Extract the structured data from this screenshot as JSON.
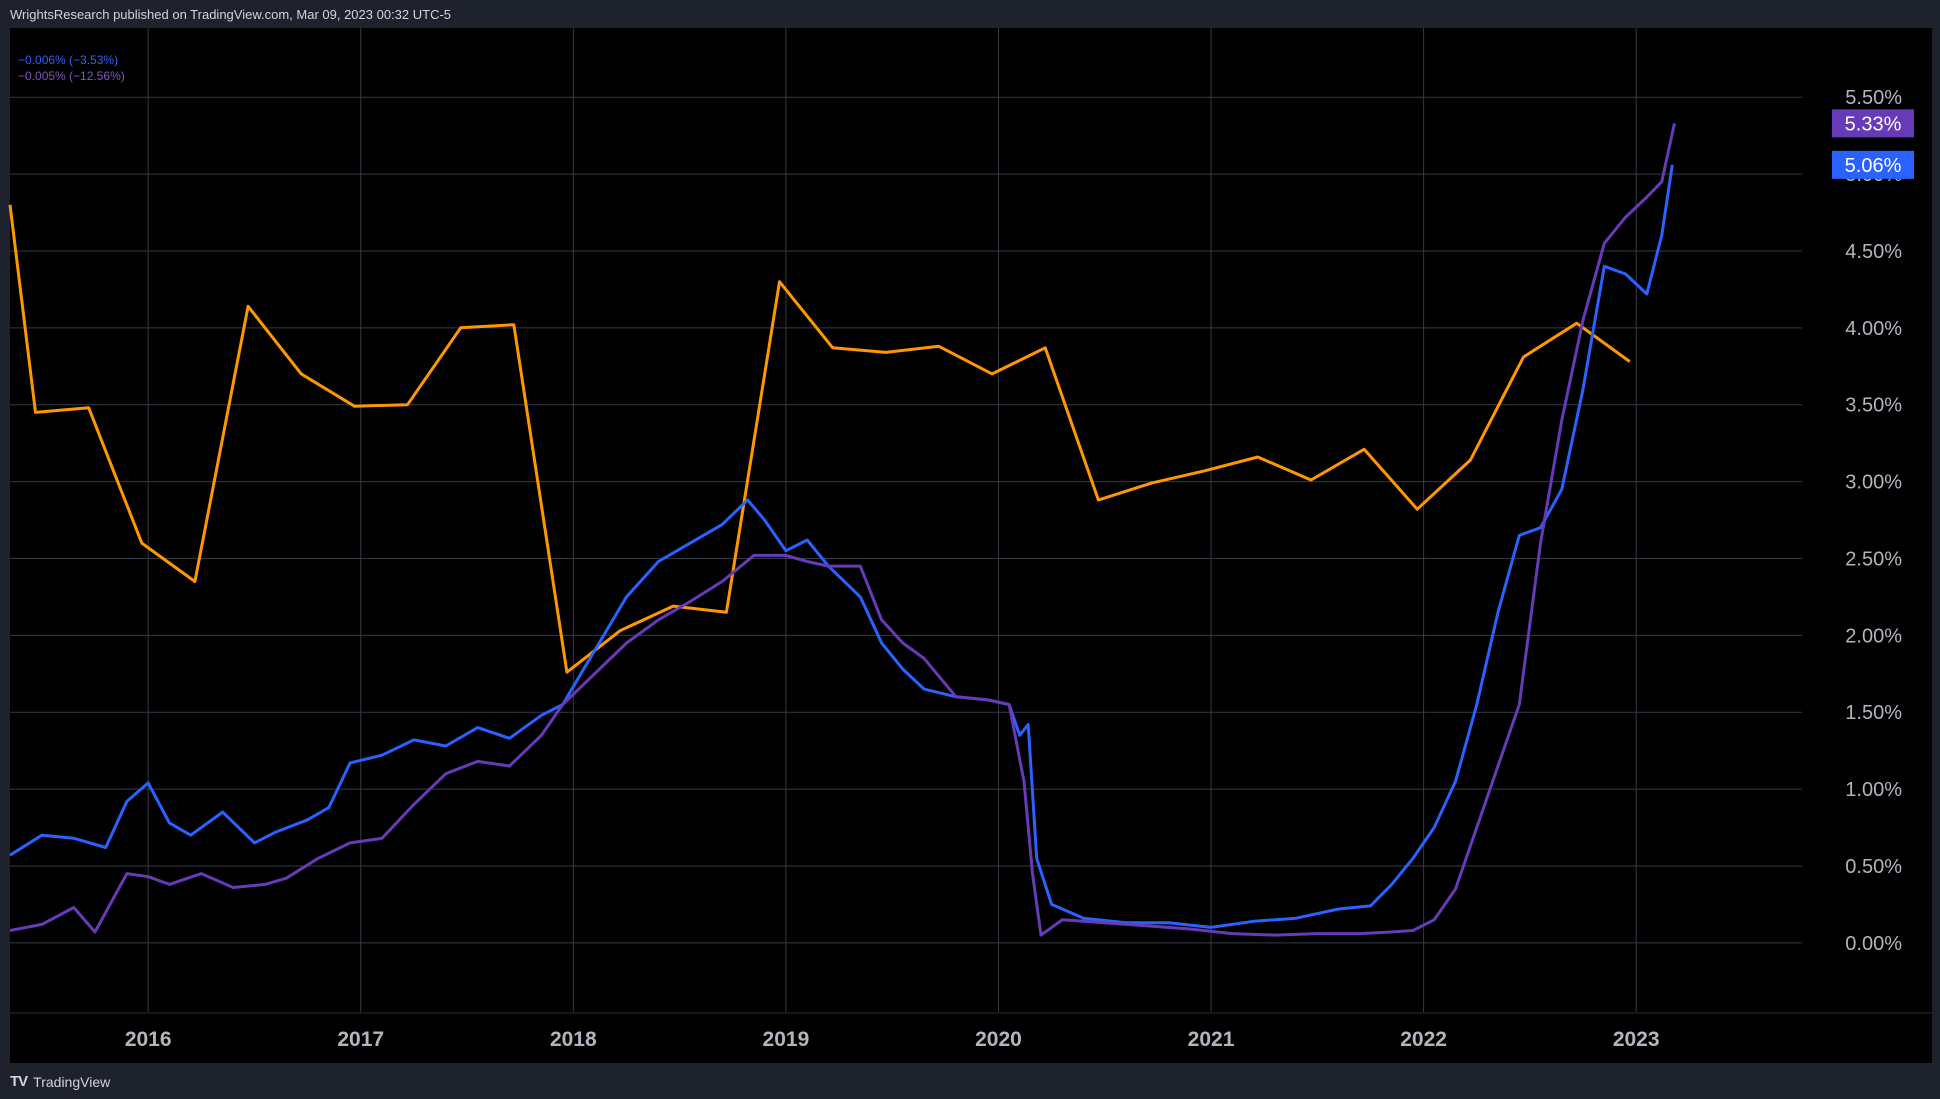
{
  "header": {
    "text": "WrightsResearch published on TradingView.com, Mar 09, 2023 00:32 UTC-5"
  },
  "footer": {
    "brand": "TradingView",
    "logo_icon": "tradingview-logo-icon"
  },
  "legend": [
    {
      "text": "−0.006% (−3.53%)",
      "color": "#2962ff"
    },
    {
      "text": "−0.005% (−12.56%)",
      "color": "#673ab7"
    }
  ],
  "price_labels": [
    {
      "text": "5.33%",
      "value": 5.33,
      "color": "#673ab7"
    },
    {
      "text": "5.06%",
      "value": 5.06,
      "color": "#2962ff"
    }
  ],
  "chart_data": {
    "type": "line",
    "ylim": [
      -0.45,
      5.95
    ],
    "xlim": [
      2015.35,
      2023.78
    ],
    "y_ticks": [
      0,
      0.5,
      1,
      1.5,
      2,
      2.5,
      3,
      3.5,
      4,
      4.5,
      5,
      5.5
    ],
    "y_tick_labels": [
      "0.00%",
      "0.50%",
      "1.00%",
      "1.50%",
      "2.00%",
      "2.50%",
      "3.00%",
      "3.50%",
      "4.00%",
      "4.50%",
      "5.00%",
      "5.50%"
    ],
    "x_ticks": [
      2016,
      2017,
      2018,
      2019,
      2020,
      2021,
      2022,
      2023
    ],
    "x_tick_labels": [
      "2016",
      "2017",
      "2018",
      "2019",
      "2020",
      "2021",
      "2022",
      "2023"
    ],
    "grid": true,
    "series": [
      {
        "color": "#ff9800",
        "x": [
          2015.35,
          2015.47,
          2015.72,
          2015.97,
          2016.22,
          2016.47,
          2016.72,
          2016.97,
          2017.22,
          2017.47,
          2017.72,
          2017.97,
          2018.22,
          2018.47,
          2018.72,
          2018.97,
          2019.22,
          2019.47,
          2019.72,
          2019.97,
          2020.22,
          2020.47,
          2020.72,
          2020.97,
          2021.22,
          2021.47,
          2021.72,
          2021.97,
          2022.22,
          2022.47,
          2022.72,
          2022.97
        ],
        "values": [
          4.8,
          3.45,
          3.48,
          2.6,
          2.35,
          4.14,
          3.7,
          3.49,
          3.5,
          4.0,
          4.02,
          1.76,
          2.03,
          2.19,
          2.15,
          4.3,
          3.87,
          3.84,
          3.88,
          3.7,
          3.87,
          2.88,
          2.99,
          3.07,
          3.16,
          3.01,
          3.21,
          2.82,
          3.14,
          3.81,
          4.03,
          3.78
        ]
      },
      {
        "color": "#2962ff",
        "x": [
          2015.35,
          2015.5,
          2015.65,
          2015.8,
          2015.9,
          2016.0,
          2016.1,
          2016.2,
          2016.35,
          2016.5,
          2016.6,
          2016.75,
          2016.85,
          2016.95,
          2017.1,
          2017.25,
          2017.4,
          2017.55,
          2017.7,
          2017.85,
          2017.95,
          2018.1,
          2018.25,
          2018.4,
          2018.55,
          2018.7,
          2018.82,
          2018.9,
          2019.0,
          2019.1,
          2019.2,
          2019.35,
          2019.45,
          2019.55,
          2019.65,
          2019.8,
          2019.95,
          2020.05,
          2020.1,
          2020.14,
          2020.18,
          2020.25,
          2020.4,
          2020.6,
          2020.8,
          2021.0,
          2021.2,
          2021.4,
          2021.6,
          2021.75,
          2021.85,
          2021.95,
          2022.05,
          2022.15,
          2022.25,
          2022.35,
          2022.45,
          2022.55,
          2022.65,
          2022.75,
          2022.85,
          2022.95,
          2023.05,
          2023.12,
          2023.17
        ],
        "values": [
          0.57,
          0.7,
          0.68,
          0.62,
          0.92,
          1.04,
          0.78,
          0.7,
          0.85,
          0.65,
          0.72,
          0.8,
          0.88,
          1.17,
          1.22,
          1.32,
          1.28,
          1.4,
          1.33,
          1.48,
          1.55,
          1.9,
          2.25,
          2.48,
          2.6,
          2.72,
          2.88,
          2.75,
          2.55,
          2.62,
          2.45,
          2.25,
          1.95,
          1.78,
          1.65,
          1.6,
          1.58,
          1.55,
          1.35,
          1.42,
          0.55,
          0.25,
          0.16,
          0.13,
          0.13,
          0.1,
          0.14,
          0.16,
          0.22,
          0.24,
          0.38,
          0.55,
          0.75,
          1.05,
          1.55,
          2.15,
          2.65,
          2.7,
          2.95,
          3.6,
          4.4,
          4.35,
          4.22,
          4.6,
          5.06
        ]
      },
      {
        "color": "#673ab7",
        "x": [
          2015.35,
          2015.5,
          2015.65,
          2015.75,
          2015.9,
          2016.0,
          2016.1,
          2016.25,
          2016.4,
          2016.55,
          2016.65,
          2016.8,
          2016.95,
          2017.1,
          2017.25,
          2017.4,
          2017.55,
          2017.7,
          2017.85,
          2017.95,
          2018.1,
          2018.25,
          2018.4,
          2018.55,
          2018.7,
          2018.85,
          2019.0,
          2019.1,
          2019.2,
          2019.35,
          2019.45,
          2019.55,
          2019.65,
          2019.8,
          2019.95,
          2020.05,
          2020.12,
          2020.16,
          2020.2,
          2020.3,
          2020.5,
          2020.7,
          2020.9,
          2021.1,
          2021.3,
          2021.5,
          2021.7,
          2021.85,
          2021.95,
          2022.05,
          2022.15,
          2022.25,
          2022.35,
          2022.45,
          2022.55,
          2022.65,
          2022.75,
          2022.85,
          2022.95,
          2023.05,
          2023.12,
          2023.18
        ],
        "values": [
          0.08,
          0.12,
          0.23,
          0.07,
          0.45,
          0.43,
          0.38,
          0.45,
          0.36,
          0.38,
          0.42,
          0.55,
          0.65,
          0.68,
          0.9,
          1.1,
          1.18,
          1.15,
          1.35,
          1.55,
          1.75,
          1.95,
          2.1,
          2.22,
          2.35,
          2.52,
          2.52,
          2.48,
          2.45,
          2.45,
          2.1,
          1.95,
          1.85,
          1.6,
          1.58,
          1.55,
          1.05,
          0.45,
          0.05,
          0.15,
          0.13,
          0.11,
          0.09,
          0.06,
          0.05,
          0.06,
          0.06,
          0.07,
          0.08,
          0.15,
          0.35,
          0.75,
          1.15,
          1.55,
          2.6,
          3.4,
          4.05,
          4.55,
          4.72,
          4.85,
          4.95,
          5.33
        ]
      }
    ]
  }
}
